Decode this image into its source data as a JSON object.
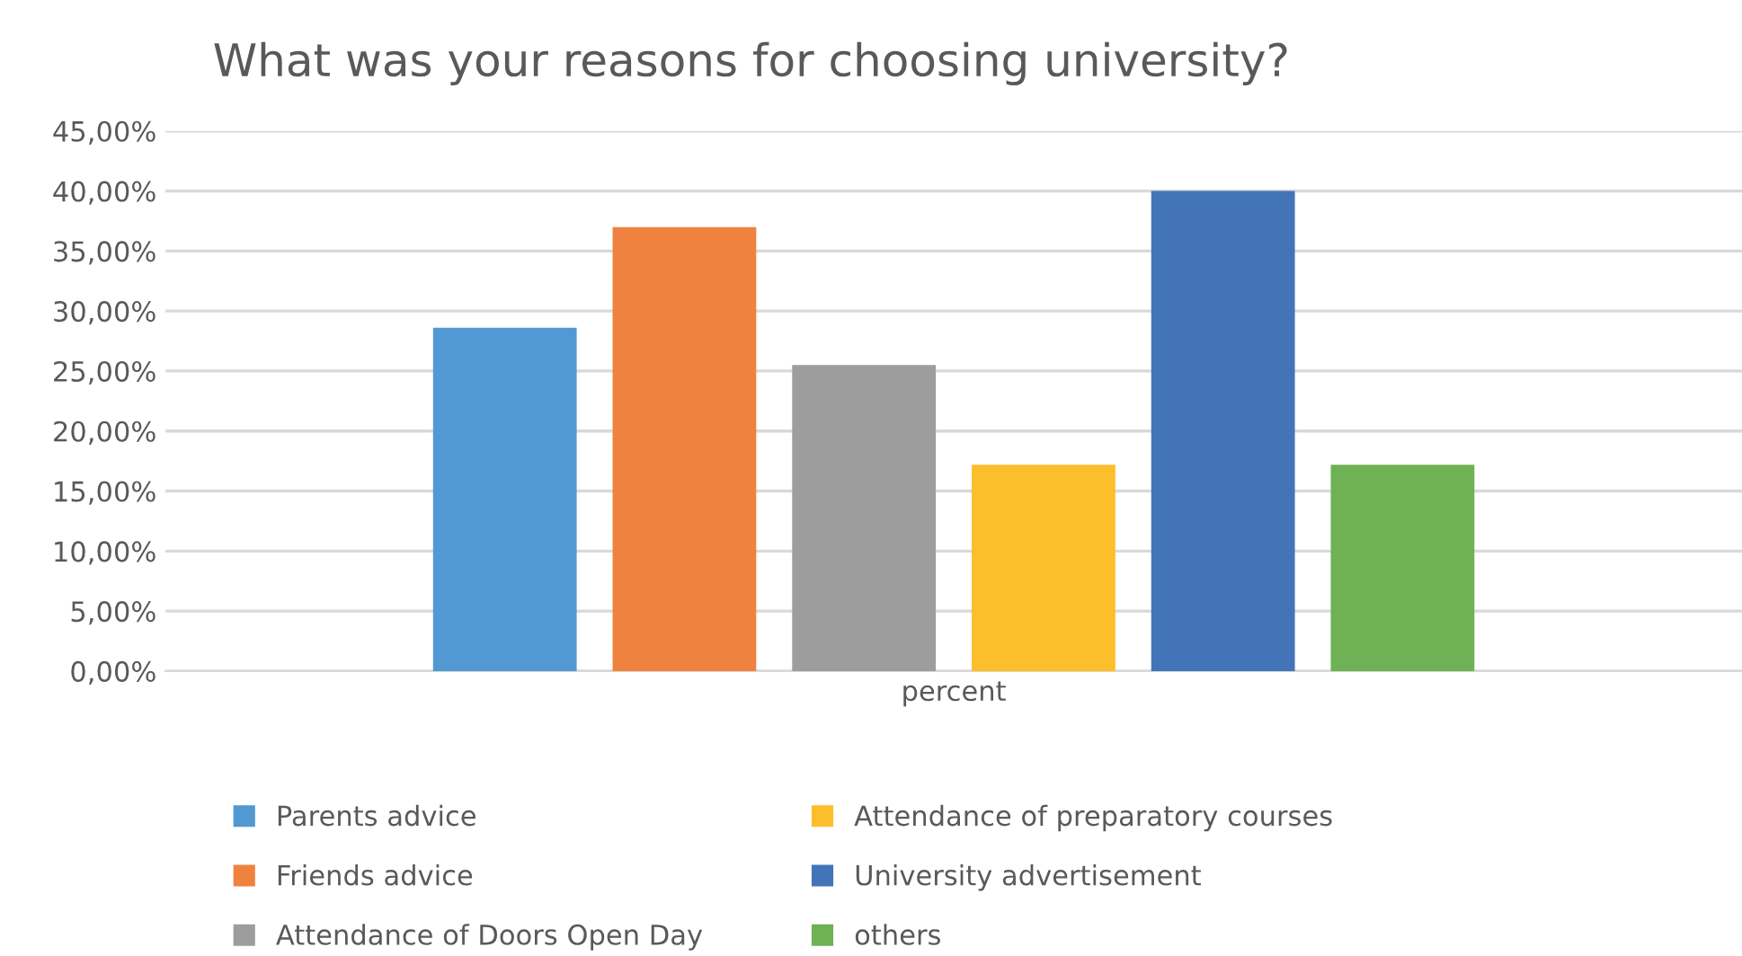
{
  "chart_data": {
    "type": "bar",
    "title": "What was your reasons for choosing university?",
    "categories": [
      "percent"
    ],
    "series": [
      {
        "name": "Parents advice",
        "color": "#5298d3",
        "values": [
          28.6
        ]
      },
      {
        "name": "Friends advice",
        "color": "#f08240",
        "values": [
          37.0
        ]
      },
      {
        "name": "Attendance of Doors Open Day",
        "color": "#9d9d9d",
        "values": [
          25.5
        ]
      },
      {
        "name": "Attendance of preparatory courses",
        "color": "#fdbe2b",
        "values": [
          17.2
        ]
      },
      {
        "name": "University advertisement",
        "color": "#4474b8",
        "values": [
          40.0
        ]
      },
      {
        "name": "others",
        "color": "#6fb155",
        "values": [
          17.2
        ]
      }
    ],
    "ylim": [
      0,
      45
    ],
    "yticks": [
      {
        "value": 0,
        "label": "0,00%"
      },
      {
        "value": 5,
        "label": "5,00%"
      },
      {
        "value": 10,
        "label": "10,00%"
      },
      {
        "value": 15,
        "label": "15,00%"
      },
      {
        "value": 20,
        "label": "20,00%"
      },
      {
        "value": 25,
        "label": "25,00%"
      },
      {
        "value": 30,
        "label": "30,00%"
      },
      {
        "value": 35,
        "label": "35,00%"
      },
      {
        "value": 40,
        "label": "40,00%"
      },
      {
        "value": 45,
        "label": "45,00%"
      }
    ],
    "grid": "y",
    "legend": "bottom"
  }
}
